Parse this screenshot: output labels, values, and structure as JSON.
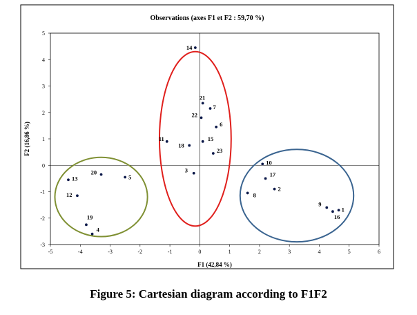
{
  "caption": "Figure 5: Cartesian diagram according to F1F2",
  "chart_data": {
    "type": "scatter",
    "title": "Observations (axes F1 et F2 : 59,70 %)",
    "xlabel": "F1 (42,84 %)",
    "ylabel": "F2 (16,86 %)",
    "xlim": [
      -5,
      6
    ],
    "ylim": [
      -3,
      5
    ],
    "xticks": [
      "-5",
      "-4",
      "-3",
      "-2",
      "-1",
      "0",
      "1",
      "2",
      "3",
      "4",
      "5",
      "6"
    ],
    "yticks": [
      "-3",
      "-2",
      "-1",
      "0",
      "1",
      "2",
      "3",
      "4",
      "5"
    ],
    "grid": false,
    "points": [
      {
        "label": "14",
        "x": -0.15,
        "y": 4.45
      },
      {
        "label": "21",
        "x": 0.1,
        "y": 2.35
      },
      {
        "label": "7",
        "x": 0.35,
        "y": 2.15
      },
      {
        "label": "22",
        "x": 0.05,
        "y": 1.8
      },
      {
        "label": "6",
        "x": 0.55,
        "y": 1.45
      },
      {
        "label": "11",
        "x": -1.1,
        "y": 0.9
      },
      {
        "label": "15",
        "x": 0.1,
        "y": 0.9
      },
      {
        "label": "18",
        "x": -0.35,
        "y": 0.75
      },
      {
        "label": "23",
        "x": 0.45,
        "y": 0.45
      },
      {
        "label": "3",
        "x": -0.2,
        "y": -0.3
      },
      {
        "label": "10",
        "x": 2.1,
        "y": 0.05
      },
      {
        "label": "17",
        "x": 2.2,
        "y": -0.5
      },
      {
        "label": "2",
        "x": 2.5,
        "y": -0.9
      },
      {
        "label": "8",
        "x": 1.6,
        "y": -1.05
      },
      {
        "label": "9",
        "x": 4.25,
        "y": -1.6
      },
      {
        "label": "16",
        "x": 4.45,
        "y": -1.75
      },
      {
        "label": "1",
        "x": 4.65,
        "y": -1.7
      },
      {
        "label": "20",
        "x": -3.3,
        "y": -0.35
      },
      {
        "label": "5",
        "x": -2.5,
        "y": -0.45
      },
      {
        "label": "13",
        "x": -4.4,
        "y": -0.55
      },
      {
        "label": "12",
        "x": -4.1,
        "y": -1.15
      },
      {
        "label": "19",
        "x": -3.8,
        "y": -2.25
      },
      {
        "label": "4",
        "x": -3.6,
        "y": -2.6
      }
    ],
    "groups": [
      {
        "color": "#e0201d",
        "center": [
          -0.15,
          1.0
        ],
        "radius": [
          1.2,
          3.3
        ]
      },
      {
        "color": "#3a6490",
        "center": [
          3.25,
          -1.15
        ],
        "radius": [
          1.9,
          1.75
        ]
      },
      {
        "color": "#7f9033",
        "center": [
          -3.3,
          -1.2
        ],
        "radius": [
          1.55,
          1.5
        ]
      }
    ],
    "colors": {
      "point": "#0d1a4a",
      "frame": "#000000"
    }
  }
}
